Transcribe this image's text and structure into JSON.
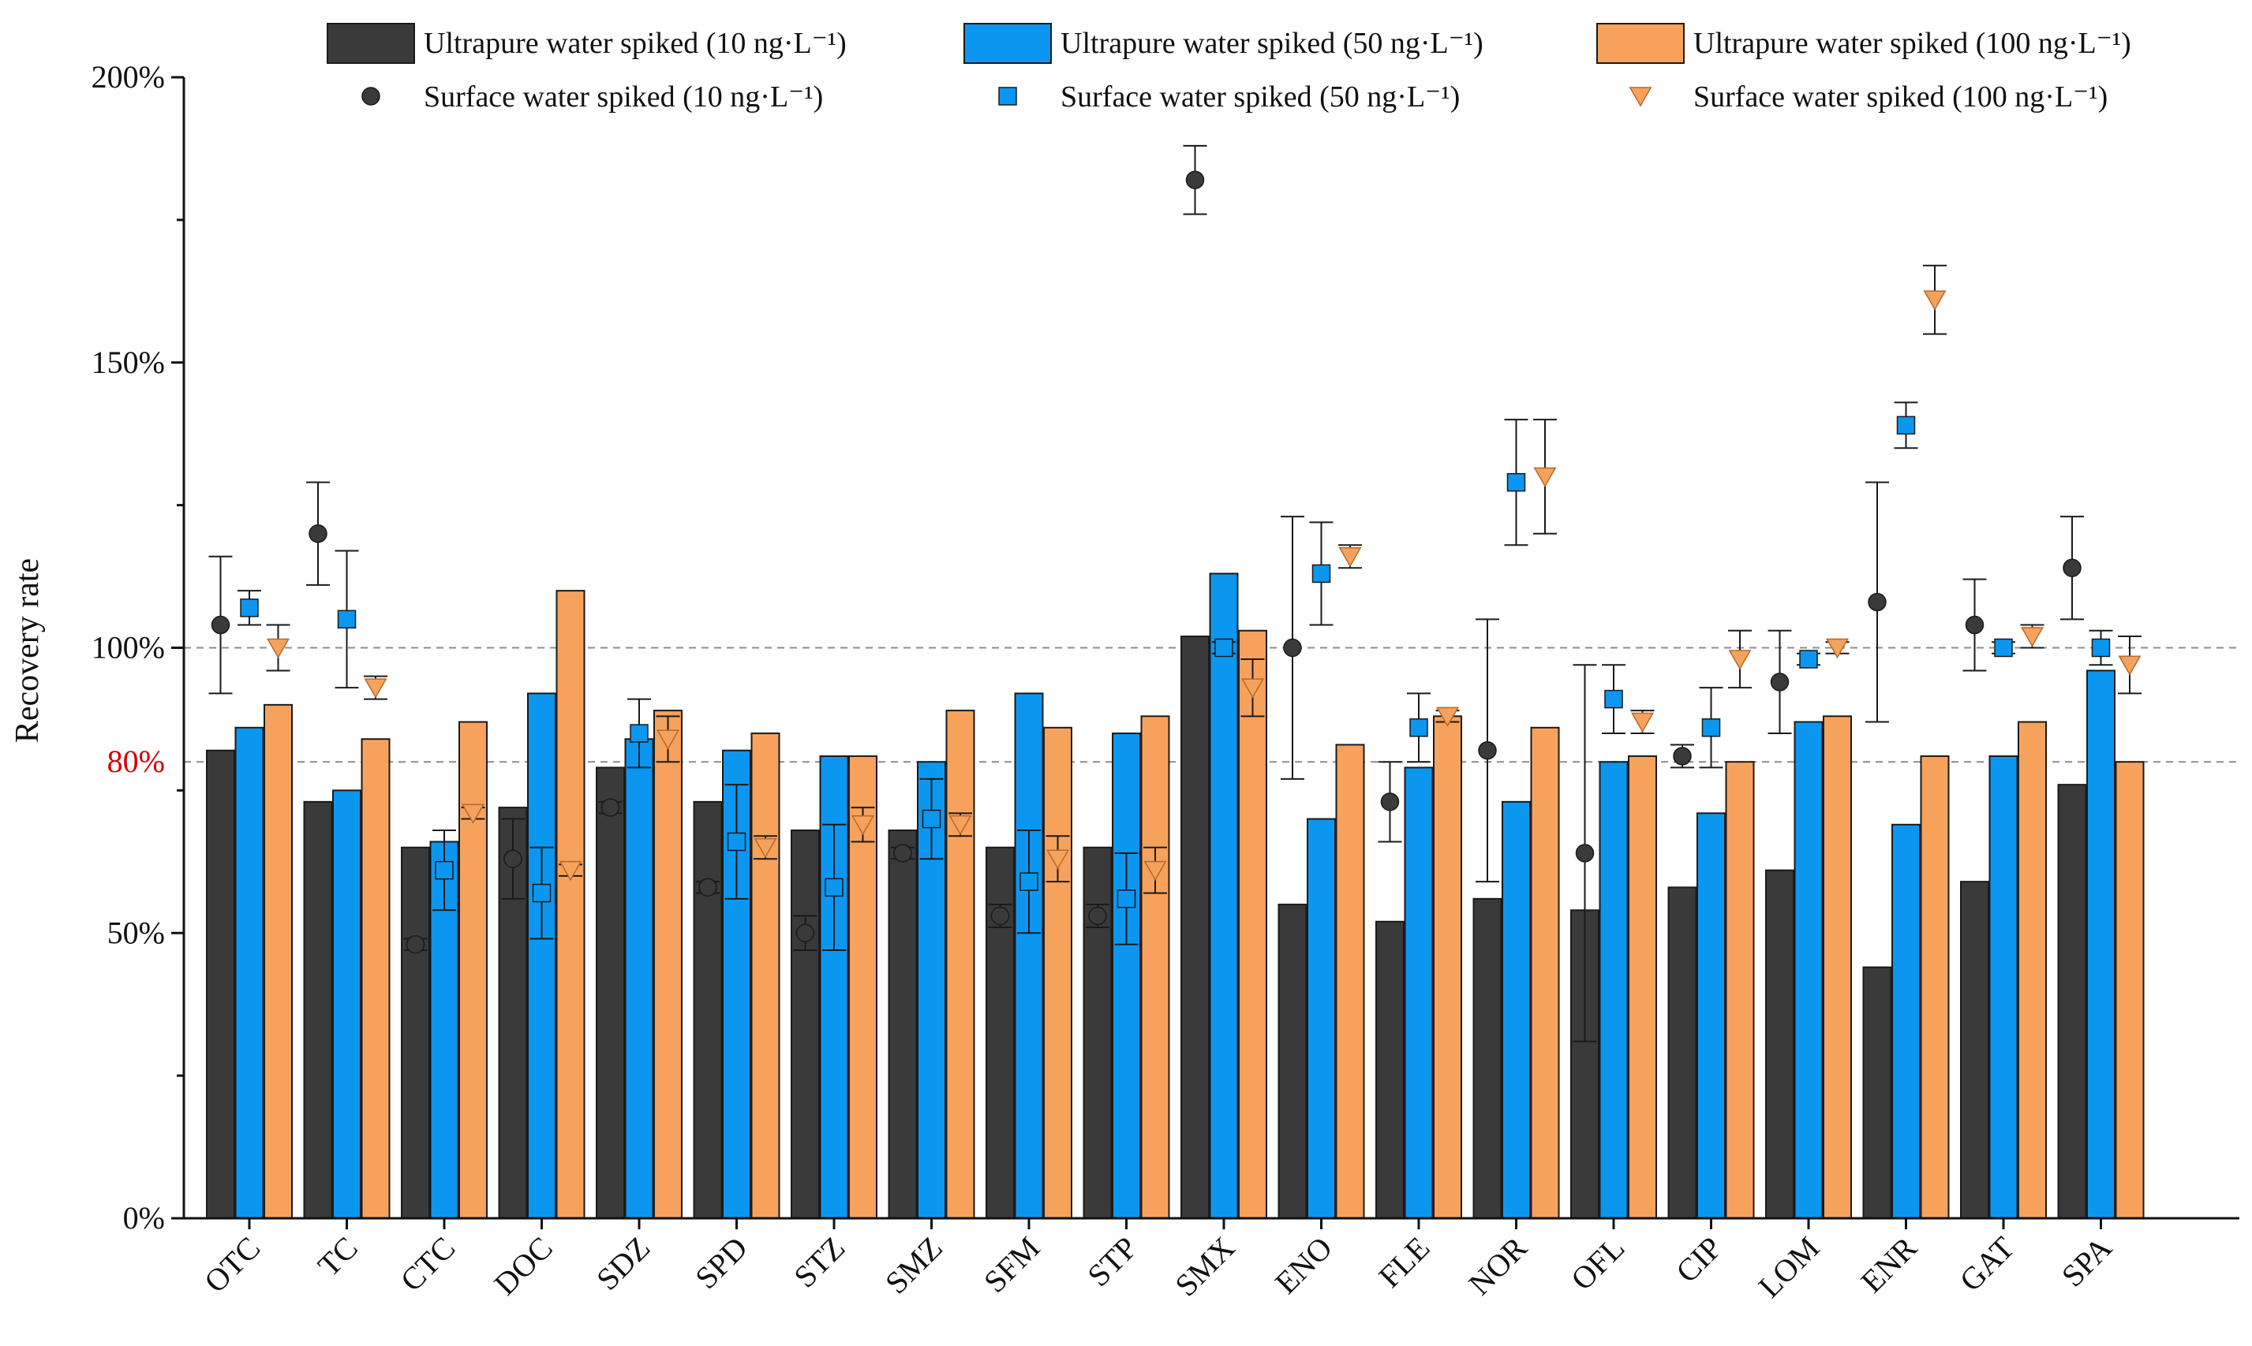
{
  "chart_data": {
    "type": "bar",
    "title": "",
    "xlabel": "",
    "ylabel": "Recovery rate",
    "ylim": [
      0,
      200
    ],
    "yticks": [
      0,
      50,
      100,
      150,
      200
    ],
    "ytick_labels": [
      "0%",
      "50%",
      "100%",
      "150%",
      "200%"
    ],
    "reference_lines": [
      {
        "value": 100,
        "label": "100%",
        "style": "dashed"
      },
      {
        "value": 80,
        "label": "80%",
        "style": "dashed",
        "label_color": "#d40000"
      }
    ],
    "categories": [
      "OTC",
      "TC",
      "CTC",
      "DOC",
      "SDZ",
      "SPD",
      "STZ",
      "SMZ",
      "SFM",
      "STP",
      "SMX",
      "ENO",
      "FLE",
      "NOR",
      "OFL",
      "CIP",
      "LOM",
      "ENR",
      "GAT",
      "SPA"
    ],
    "legend_position": "top",
    "bar_series": [
      {
        "name": "Ultrapure water spiked (10 ng·L⁻¹)",
        "color": "#3a3a3a",
        "values": [
          82,
          73,
          65,
          72,
          79,
          73,
          68,
          68,
          65,
          65,
          102,
          55,
          52,
          56,
          54,
          58,
          61,
          44,
          59,
          76
        ]
      },
      {
        "name": "Ultrapure water spiked (50 ng·L⁻¹)",
        "color": "#0b97f0",
        "values": [
          86,
          75,
          66,
          92,
          84,
          82,
          81,
          80,
          92,
          85,
          113,
          70,
          79,
          73,
          80,
          71,
          87,
          69,
          81,
          96
        ]
      },
      {
        "name": "Ultrapure water spiked (100 ng·L⁻¹)",
        "color": "#f7a25c",
        "values": [
          90,
          84,
          87,
          110,
          89,
          85,
          81,
          89,
          86,
          88,
          103,
          83,
          88,
          86,
          81,
          80,
          88,
          81,
          87,
          80
        ]
      }
    ],
    "point_series": [
      {
        "name": "Surface water spiked (10 ng·L⁻¹)",
        "marker": "circle",
        "color": "#3a3a3a",
        "values": [
          104,
          120,
          48,
          63,
          72,
          58,
          50,
          64,
          53,
          53,
          182,
          100,
          73,
          82,
          64,
          81,
          94,
          108,
          104,
          114
        ],
        "errors": [
          12,
          9,
          1,
          7,
          1,
          1,
          3,
          1,
          2,
          2,
          6,
          23,
          7,
          23,
          33,
          2,
          9,
          21,
          8,
          9
        ]
      },
      {
        "name": "Surface water spiked (50 ng·L⁻¹)",
        "marker": "square",
        "color": "#0b97f0",
        "values": [
          107,
          105,
          61,
          57,
          85,
          66,
          58,
          70,
          59,
          56,
          100,
          113,
          86,
          129,
          91,
          86,
          98,
          139,
          100,
          100
        ],
        "errors": [
          3,
          12,
          7,
          8,
          6,
          10,
          11,
          7,
          9,
          8,
          1,
          9,
          6,
          11,
          6,
          7,
          1,
          4,
          1,
          3
        ]
      },
      {
        "name": "Surface water spiked (100 ng·L⁻¹)",
        "marker": "triangle-down",
        "color": "#f7a25c",
        "values": [
          100,
          93,
          71,
          61,
          84,
          65,
          69,
          69,
          63,
          61,
          93,
          116,
          88,
          130,
          87,
          98,
          100,
          161,
          102,
          97
        ],
        "errors": [
          4,
          2,
          1,
          1,
          4,
          2,
          3,
          2,
          4,
          4,
          5,
          2,
          1,
          10,
          2,
          5,
          1,
          6,
          2,
          5
        ]
      }
    ]
  }
}
